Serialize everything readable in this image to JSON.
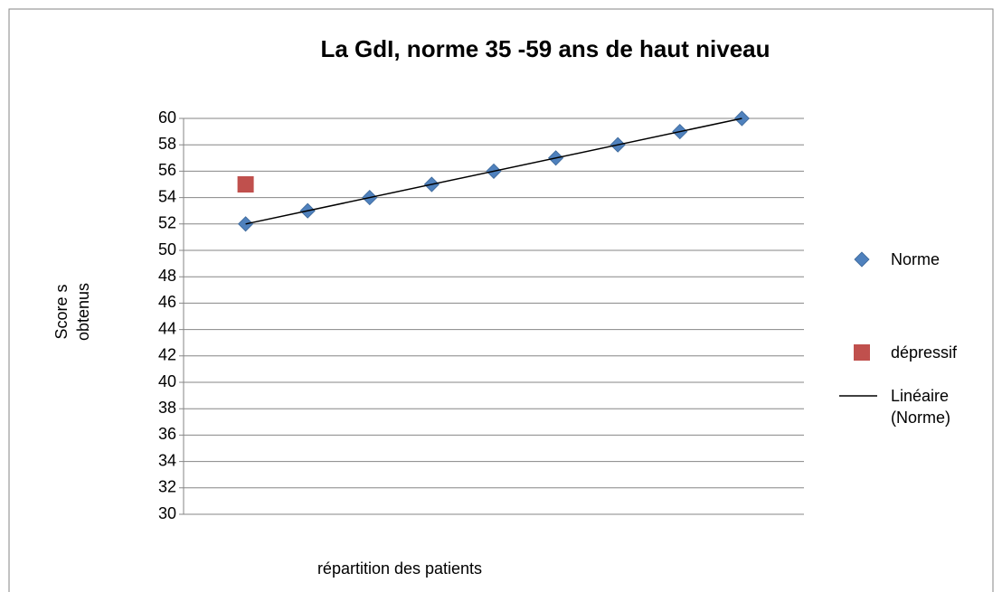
{
  "chart_data": {
    "type": "scatter",
    "title": "La GdI, norme 35 -59 ans de haut niveau",
    "x_label": "répartition des patients",
    "y_label": "Score s obtenus",
    "xlim": [
      0,
      10
    ],
    "ylim": [
      30,
      60
    ],
    "yticks": [
      30,
      32,
      34,
      36,
      38,
      40,
      42,
      44,
      46,
      48,
      50,
      52,
      54,
      56,
      58,
      60
    ],
    "grid": true,
    "legend": "right",
    "series": [
      {
        "name": "Norme",
        "color": "#4f81bd",
        "marker": "diamond",
        "x": [
          1,
          2,
          3,
          4,
          5,
          6,
          7,
          8,
          9
        ],
        "values": [
          52,
          53,
          54,
          55,
          56,
          57,
          58,
          59,
          60
        ]
      },
      {
        "name": "dépressif",
        "color": "#c0504d",
        "marker": "square",
        "x": [
          1
        ],
        "values": [
          55
        ]
      },
      {
        "name": "Linéaire (Norme)",
        "color": "#000000",
        "marker": "line",
        "x": [
          1,
          9
        ],
        "values": [
          52,
          60
        ]
      }
    ]
  }
}
